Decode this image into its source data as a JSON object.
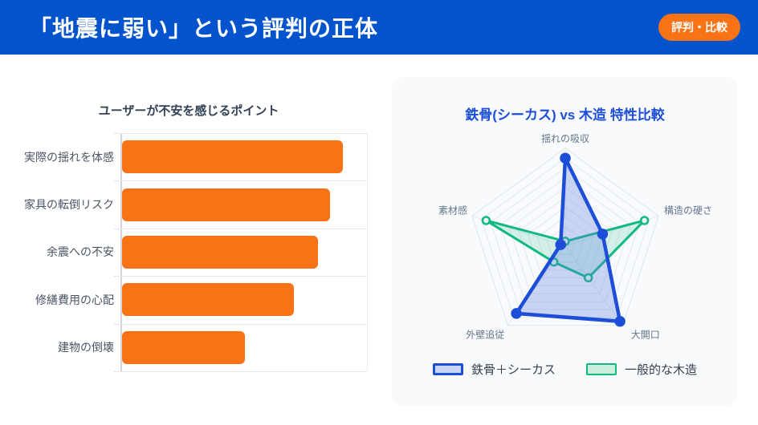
{
  "header": {
    "title": "「地震に弱い」という評判の正体",
    "badge": "評判・比較",
    "bg_color": "#0354cc",
    "badge_color": "#f97316",
    "text_color": "#ffffff"
  },
  "chart_data": [
    {
      "type": "bar",
      "orientation": "horizontal",
      "title": "ユーザーが不安を感じるポイント",
      "categories": [
        "実際の揺れを体感",
        "家具の転倒リスク",
        "余震への不安",
        "修繕費用の心配",
        "建物の倒壊"
      ],
      "values": [
        90,
        85,
        80,
        70,
        50
      ],
      "xlim": [
        0,
        100
      ],
      "x_tick_labels_visible": false,
      "grid": true,
      "bar_color": "#f97316",
      "grid_color": "#e5e7eb"
    },
    {
      "type": "radar",
      "title": "鉄骨(シーカス) vs 木造 特性比較",
      "axes": [
        "揺れの吸収",
        "構造の硬さ",
        "大開口",
        "外壁追従",
        "素材感"
      ],
      "series": [
        {
          "name": "鉄骨＋シーカス",
          "values": [
            90,
            40,
            95,
            85,
            5
          ],
          "stroke": "#1d4ed8",
          "fill": "rgba(93,125,226,0.30)",
          "marker_fill": "#1d4ed8",
          "stroke_width": 4.5,
          "legend_fill": "#c7d7f5"
        },
        {
          "name": "一般的な木造",
          "values": [
            5,
            85,
            40,
            20,
            85
          ],
          "stroke": "#10b981",
          "fill": "rgba(16,185,129,0.16)",
          "marker_fill": "#e8f8f0",
          "stroke_width": 3,
          "legend_fill": "#cdeedd"
        }
      ],
      "rlim": [
        0,
        100
      ],
      "rings": 10,
      "ring_color": "#e4e8ee",
      "axis_label_color": "#64748b",
      "legend_position": "bottom"
    }
  ]
}
